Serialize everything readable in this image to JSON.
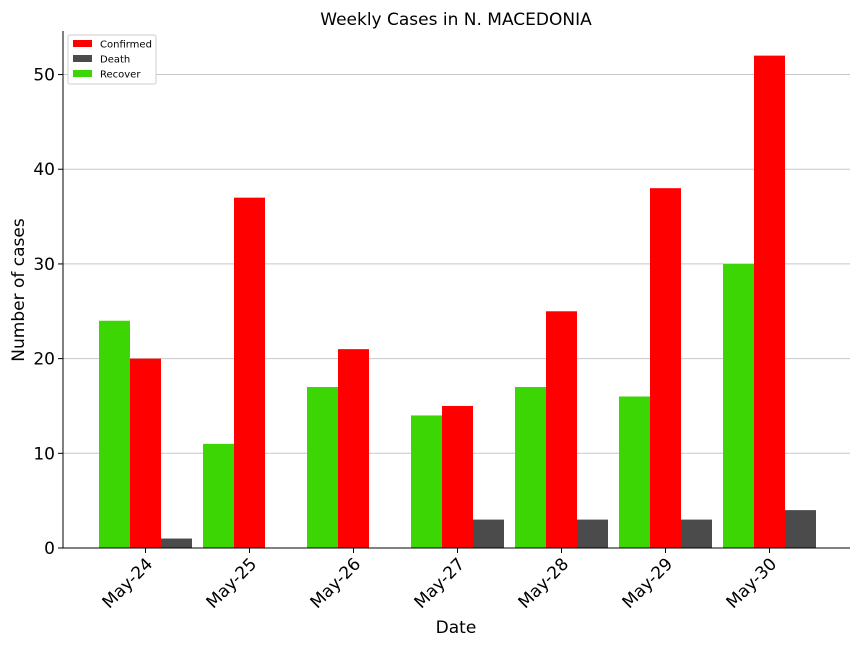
{
  "chart_data": {
    "type": "bar",
    "title": "Weekly Cases in N. MACEDONIA",
    "xlabel": "Date",
    "ylabel": "Number of cases",
    "categories": [
      "May-24",
      "May-25",
      "May-26",
      "May-27",
      "May-28",
      "May-29",
      "May-30"
    ],
    "series": [
      {
        "name": "Recover",
        "color": "#3dd605",
        "values": [
          24,
          11,
          17,
          14,
          17,
          16,
          30
        ]
      },
      {
        "name": "Confirmed",
        "color": "#ff0000",
        "values": [
          20,
          37,
          21,
          15,
          25,
          38,
          52
        ]
      },
      {
        "name": "Death",
        "color": "#4b4b4b",
        "values": [
          1,
          0,
          0,
          3,
          3,
          3,
          4
        ]
      }
    ],
    "legend_order": [
      "Confirmed",
      "Death",
      "Recover"
    ],
    "ylim": [
      0,
      54.6
    ],
    "yticks": [
      0,
      10,
      20,
      30,
      40,
      50
    ],
    "grid": "horizontal",
    "legend_position": "top-left"
  }
}
